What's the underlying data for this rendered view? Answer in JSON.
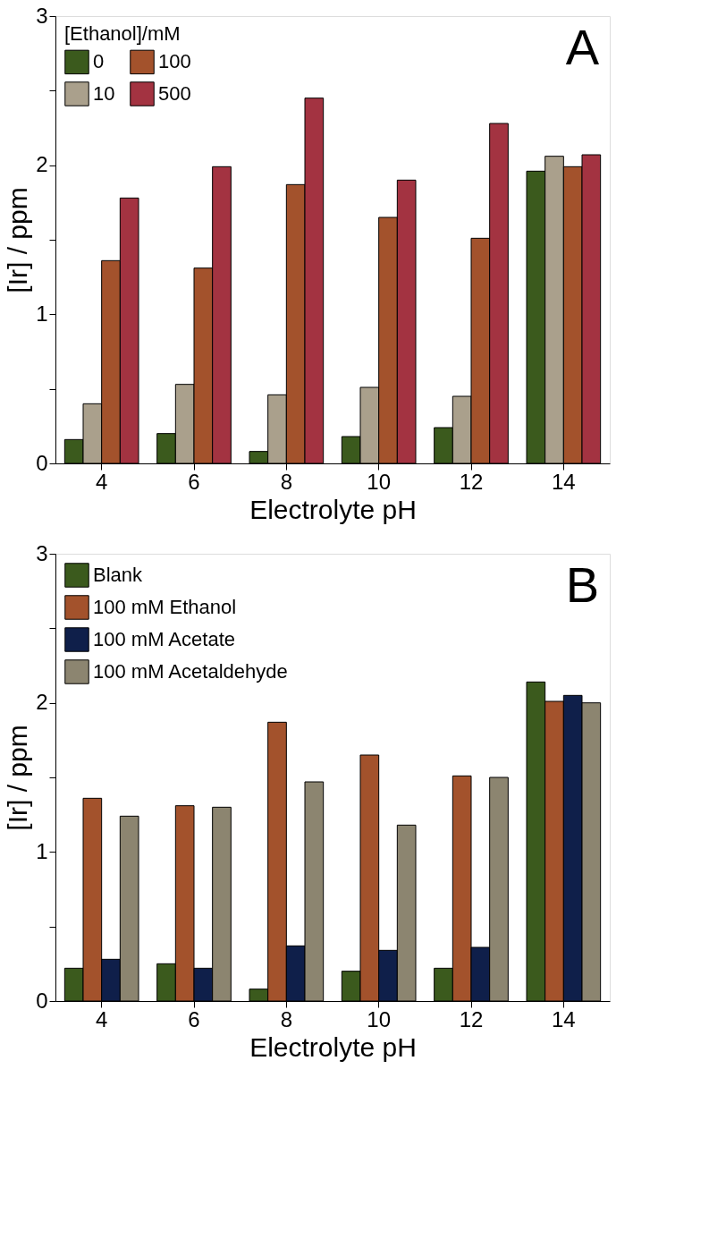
{
  "chart_data": [
    {
      "type": "bar",
      "xlabel": "Electrolyte pH",
      "ylabel": "[Ir] / ppm",
      "legend_title": "[Ethanol]/mM",
      "legend": "top left",
      "grid": false,
      "categories": [
        "4",
        "6",
        "8",
        "10",
        "12",
        "14"
      ],
      "ylim": [
        0,
        3
      ],
      "yticks": [
        0,
        {
          "value": 0.5,
          "label": null
        },
        1,
        {
          "value": 1.5,
          "label": null
        },
        2,
        {
          "value": 2.5,
          "label": null
        },
        3
      ],
      "annotations": [
        "A"
      ],
      "series": [
        {
          "name": "0",
          "color": "#3b5a1d",
          "values": [
            0.16,
            0.2,
            0.08,
            0.18,
            0.24,
            1.96
          ]
        },
        {
          "name": "10",
          "color": "#aaa08c",
          "values": [
            0.4,
            0.53,
            0.46,
            0.51,
            0.45,
            2.06
          ]
        },
        {
          "name": "100",
          "color": "#a3522c",
          "values": [
            1.36,
            1.31,
            1.87,
            1.65,
            1.51,
            1.99
          ]
        },
        {
          "name": "500",
          "color": "#a33341",
          "values": [
            1.78,
            1.99,
            2.45,
            1.9,
            2.28,
            2.07
          ]
        }
      ]
    },
    {
      "type": "bar",
      "xlabel": "Electrolyte pH",
      "ylabel": "[Ir] / ppm",
      "legend": "top left",
      "grid": false,
      "categories": [
        "4",
        "6",
        "8",
        "10",
        "12",
        "14"
      ],
      "ylim": [
        0,
        3
      ],
      "yticks": [
        0,
        {
          "value": 0.5,
          "label": null
        },
        1,
        {
          "value": 1.5,
          "label": null
        },
        2,
        {
          "value": 2.5,
          "label": null
        },
        3
      ],
      "annotations": [
        "B"
      ],
      "series": [
        {
          "name": "Blank",
          "color": "#3b5a1d",
          "values": [
            0.22,
            0.25,
            0.08,
            0.2,
            0.22,
            2.14
          ]
        },
        {
          "name": "100 mM Ethanol",
          "color": "#a3522c",
          "values": [
            1.36,
            1.31,
            1.87,
            1.65,
            1.51,
            2.01
          ]
        },
        {
          "name": "100 mM Acetate",
          "color": "#0f1f4a",
          "values": [
            0.28,
            0.22,
            0.37,
            0.34,
            0.36,
            2.05
          ]
        },
        {
          "name": "100 mM Acetaldehyde",
          "color": "#8c8570",
          "values": [
            1.24,
            1.3,
            1.47,
            1.18,
            1.5,
            2.0
          ]
        }
      ]
    }
  ]
}
